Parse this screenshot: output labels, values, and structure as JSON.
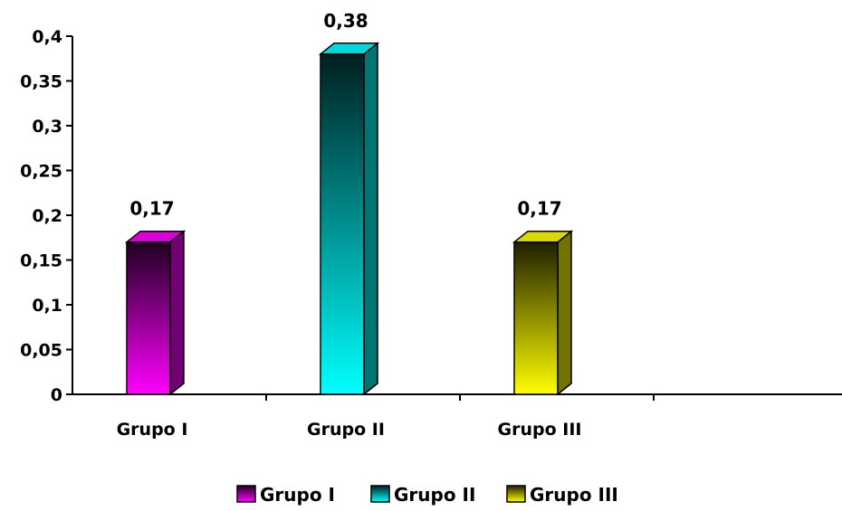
{
  "chart_data": {
    "type": "bar",
    "categories": [
      "Grupo I",
      "Grupo II",
      "Grupo III"
    ],
    "values": [
      0.17,
      0.38,
      0.17
    ],
    "value_labels": [
      "0,17",
      "0,38",
      "0,17"
    ],
    "ylim": [
      0,
      0.4
    ],
    "yticks": [
      0,
      0.05,
      0.1,
      0.15,
      0.2,
      0.25,
      0.3,
      0.35,
      0.4
    ],
    "ytick_labels": [
      "0",
      "0,05",
      "0,1",
      "0,15",
      "0,2",
      "0,25",
      "0,3",
      "0,35",
      "0,4"
    ],
    "legend": [
      "Grupo I",
      "Grupo II",
      "Grupo III"
    ],
    "legend_position": "bottom",
    "grid": false,
    "colors": [
      "#ff00ff",
      "#00ffff",
      "#ffff00"
    ]
  }
}
